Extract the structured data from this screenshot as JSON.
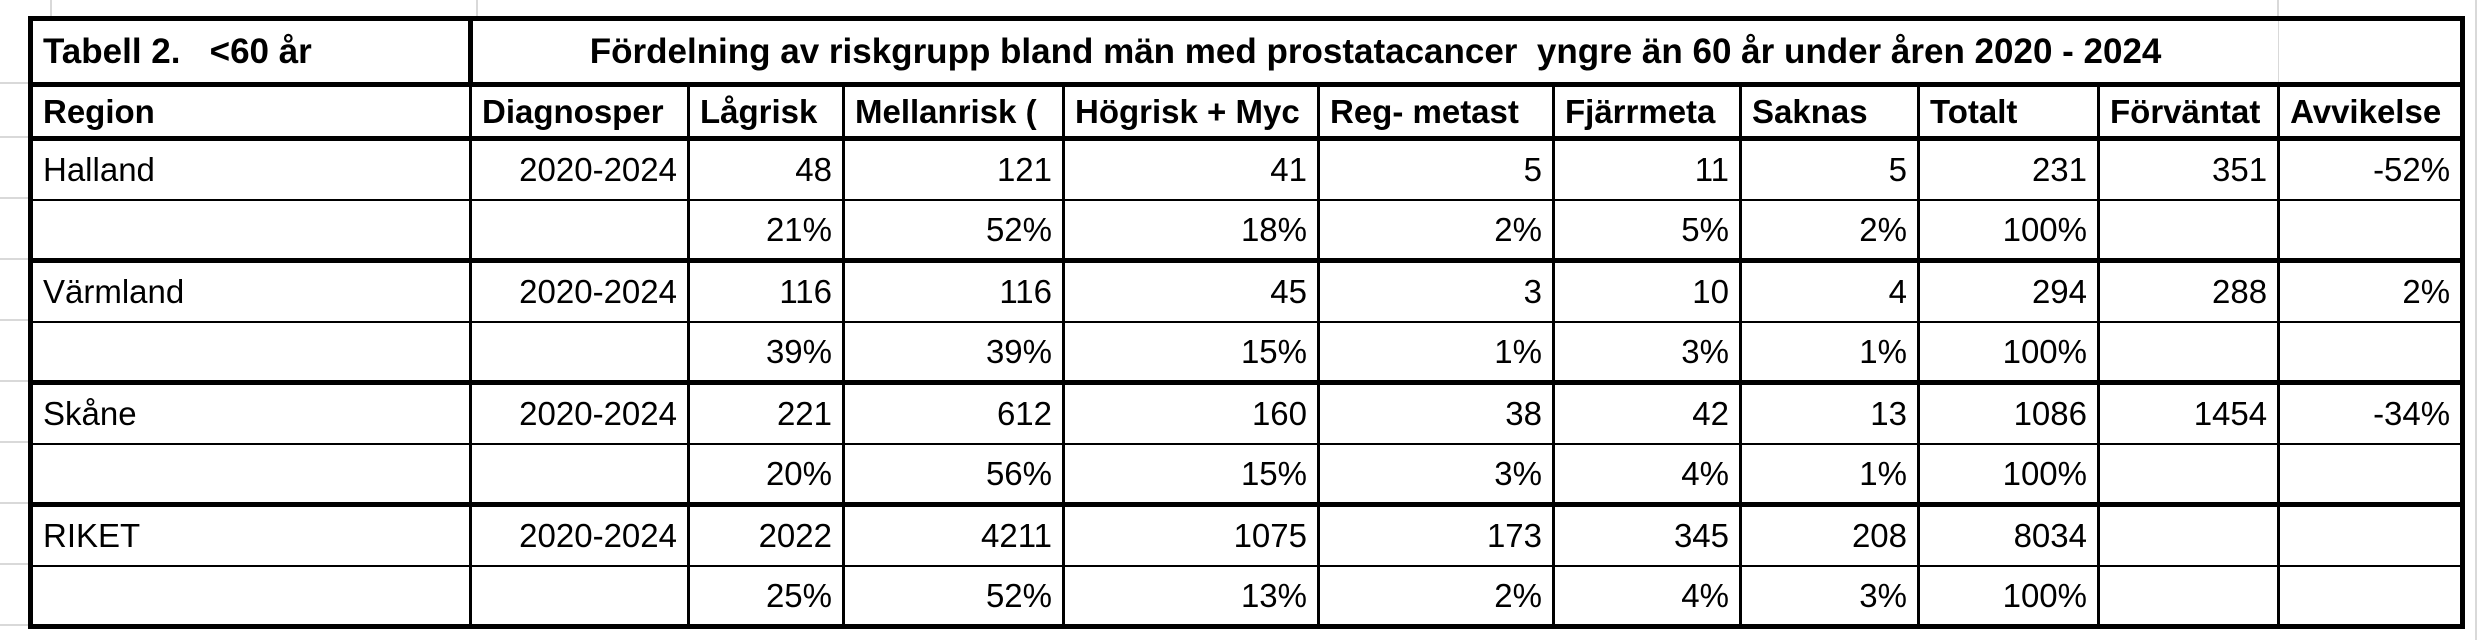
{
  "table": {
    "title_left": "Tabell 2.   <60 år",
    "title_main": "Fördelning av riskgrupp bland män med prostatacancer  yngre än 60 år under åren 2020 - 2024",
    "columns": [
      {
        "id": "region",
        "label": "Region",
        "align": "left"
      },
      {
        "id": "diagnosperiod",
        "label": "Diagnosper",
        "align": "right"
      },
      {
        "id": "lagrisk",
        "label": "Lågrisk",
        "align": "right"
      },
      {
        "id": "mellanrisk",
        "label": "Mellanrisk (",
        "align": "right"
      },
      {
        "id": "hogrisk",
        "label": "Högrisk + Myc",
        "align": "right"
      },
      {
        "id": "reg-metastaser",
        "label": "Reg- metast",
        "align": "right"
      },
      {
        "id": "fjarrmetastaser",
        "label": "Fjärrmeta",
        "align": "right"
      },
      {
        "id": "saknas",
        "label": "Saknas",
        "align": "right"
      },
      {
        "id": "totalt",
        "label": "Totalt",
        "align": "right"
      },
      {
        "id": "forvantat",
        "label": "Förväntat",
        "align": "right"
      },
      {
        "id": "avvikelse",
        "label": "Avvikelse",
        "align": "right"
      }
    ],
    "rows": [
      {
        "name": "halland",
        "type": "data",
        "cells": [
          "Halland",
          "2020-2024",
          "48",
          "121",
          "41",
          "5",
          "11",
          "5",
          "231",
          "351",
          "-52%"
        ]
      },
      {
        "name": "halland-percent",
        "type": "percent",
        "cells": [
          "",
          "",
          "21%",
          "52%",
          "18%",
          "2%",
          "5%",
          "2%",
          "100%",
          "",
          ""
        ]
      },
      {
        "name": "varmland",
        "type": "data",
        "cells": [
          "Värmland",
          "2020-2024",
          "116",
          "116",
          "45",
          "3",
          "10",
          "4",
          "294",
          "288",
          "2%"
        ]
      },
      {
        "name": "varmland-percent",
        "type": "percent",
        "cells": [
          "",
          "",
          "39%",
          "39%",
          "15%",
          "1%",
          "3%",
          "1%",
          "100%",
          "",
          ""
        ]
      },
      {
        "name": "skane",
        "type": "data",
        "cells": [
          "Skåne",
          "2020-2024",
          "221",
          "612",
          "160",
          "38",
          "42",
          "13",
          "1086",
          "1454",
          "-34%"
        ]
      },
      {
        "name": "skane-percent",
        "type": "percent",
        "cells": [
          "",
          "",
          "20%",
          "56%",
          "15%",
          "3%",
          "4%",
          "1%",
          "100%",
          "",
          ""
        ]
      },
      {
        "name": "riket",
        "type": "data",
        "cells": [
          "RIKET",
          "2020-2024",
          "2022",
          "4211",
          "1075",
          "173",
          "345",
          "208",
          "8034",
          "",
          ""
        ]
      },
      {
        "name": "riket-percent",
        "type": "percent",
        "cells": [
          "",
          "",
          "25%",
          "52%",
          "13%",
          "2%",
          "4%",
          "3%",
          "100%",
          "",
          ""
        ]
      }
    ],
    "colors": {
      "border": "#000000",
      "text": "#000000",
      "background": "#ffffff",
      "gridline": "#d9d9d9"
    }
  }
}
